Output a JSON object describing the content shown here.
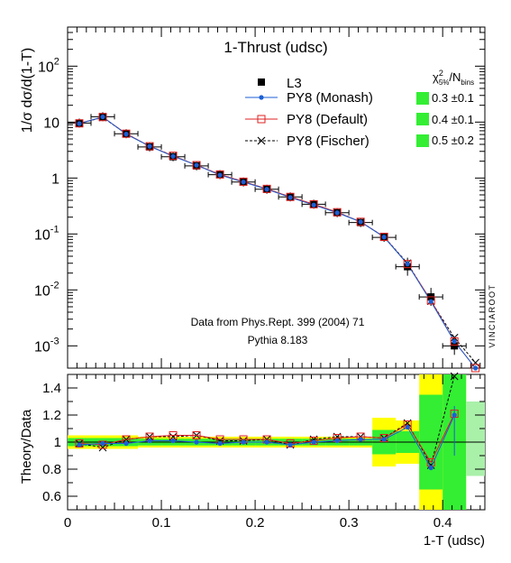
{
  "chart_data": [
    {
      "type": "scatter",
      "panel": "main",
      "title": "1-Thrust (udsc)",
      "ylabel": "1/σ dσ/d(1-T)",
      "yscale": "log",
      "xlim": [
        0,
        0.445
      ],
      "ylim": [
        0.0004,
        500
      ],
      "yticks": [
        {
          "label": "10",
          "sup": "-3"
        },
        {
          "label": "10",
          "sup": "-2"
        },
        {
          "label": "10",
          "sup": "-1"
        },
        {
          "label": "1",
          "sup": ""
        },
        {
          "label": "10",
          "sup": ""
        },
        {
          "label": "10",
          "sup": "2"
        }
      ],
      "legend_position": "top-right",
      "chi2_header": "χ²5%/Nbins",
      "bins": [
        [
          0.0,
          0.025
        ],
        [
          0.025,
          0.05
        ],
        [
          0.05,
          0.075
        ],
        [
          0.075,
          0.1
        ],
        [
          0.1,
          0.125
        ],
        [
          0.125,
          0.15
        ],
        [
          0.15,
          0.175
        ],
        [
          0.175,
          0.2
        ],
        [
          0.2,
          0.225
        ],
        [
          0.225,
          0.25
        ],
        [
          0.25,
          0.275
        ],
        [
          0.275,
          0.3
        ],
        [
          0.3,
          0.325
        ],
        [
          0.325,
          0.35
        ],
        [
          0.35,
          0.375
        ],
        [
          0.375,
          0.4
        ],
        [
          0.4,
          0.425
        ],
        [
          0.425,
          0.445
        ]
      ],
      "x": [
        0.0125,
        0.0375,
        0.0625,
        0.0875,
        0.1125,
        0.1375,
        0.1625,
        0.1875,
        0.2125,
        0.2375,
        0.2625,
        0.2875,
        0.3125,
        0.3375,
        0.3625,
        0.3875,
        0.4125,
        0.435
      ],
      "series": [
        {
          "name": "L3",
          "marker": "square",
          "color": "#000000",
          "values": [
            9.6,
            12.5,
            6.2,
            3.6,
            2.4,
            1.65,
            1.15,
            0.85,
            0.63,
            0.46,
            0.34,
            0.24,
            0.16,
            0.087,
            0.026,
            0.0075,
            0.001,
            null
          ]
        },
        {
          "name": "PY8 (Monash)",
          "marker": "dot",
          "color": "#1b5fd6",
          "values": [
            9.4,
            12.4,
            6.1,
            3.7,
            2.45,
            1.7,
            1.13,
            0.85,
            0.63,
            0.45,
            0.33,
            0.24,
            0.165,
            0.088,
            0.029,
            0.0062,
            0.0012,
            0.0004
          ]
        },
        {
          "name": "PY8 (Default)",
          "marker": "open-square",
          "color": "#e02020",
          "values": [
            9.5,
            12.3,
            6.2,
            3.7,
            2.5,
            1.7,
            1.16,
            0.86,
            0.64,
            0.46,
            0.34,
            0.245,
            0.165,
            0.089,
            0.029,
            0.0065,
            0.0012,
            0.0004
          ]
        },
        {
          "name": "PY8 (Fischer)",
          "marker": "cross",
          "color": "#000000",
          "values": [
            9.5,
            12.1,
            6.2,
            3.7,
            2.5,
            1.7,
            1.16,
            0.86,
            0.64,
            0.46,
            0.34,
            0.245,
            0.165,
            0.089,
            0.03,
            0.0063,
            0.0014,
            0.0005
          ]
        }
      ],
      "chi2": [
        {
          "series": "PY8 (Monash)",
          "value": "0.3 ±0.1"
        },
        {
          "series": "PY8 (Default)",
          "value": "0.4 ±0.1"
        },
        {
          "series": "PY8 (Fischer)",
          "value": "0.5 ±0.2"
        }
      ],
      "annotations": [
        "Data from Phys.Rept. 399 (2004) 71",
        "Pythia 8.183"
      ],
      "watermark": "VINCIAROOT"
    },
    {
      "type": "line",
      "panel": "ratio",
      "xlabel": "1-T (udsc)",
      "ylabel": "Theory/Data",
      "xlim": [
        0,
        0.445
      ],
      "ylim": [
        0.5,
        1.5
      ],
      "xticks": [
        "0",
        "0.1",
        "0.2",
        "0.3",
        "0.4"
      ],
      "yticks": [
        "0.6",
        "0.8",
        "1",
        "1.2",
        "1.4"
      ],
      "x": [
        0.0125,
        0.0375,
        0.0625,
        0.0875,
        0.1125,
        0.1375,
        0.1625,
        0.1875,
        0.2125,
        0.2375,
        0.2625,
        0.2875,
        0.3125,
        0.3375,
        0.3625,
        0.3875,
        0.4125
      ],
      "bands": {
        "yellow_halfwidth": [
          0.05,
          0.05,
          0.05,
          0.04,
          0.04,
          0.04,
          0.04,
          0.04,
          0.04,
          0.04,
          0.04,
          0.04,
          0.04,
          0.18,
          0.16,
          0.6,
          0.6
        ],
        "green_halfwidth": [
          0.03,
          0.03,
          0.03,
          0.025,
          0.025,
          0.025,
          0.025,
          0.025,
          0.025,
          0.025,
          0.025,
          0.025,
          0.025,
          0.09,
          0.08,
          0.35,
          0.6
        ],
        "green_color": "#33ee33",
        "yellow_color": "#ffff00"
      },
      "series": [
        {
          "name": "PY8 (Monash)",
          "color": "#1b5fd6",
          "values": [
            0.98,
            0.99,
            0.99,
            1.01,
            1.01,
            1.0,
            0.99,
            1.0,
            1.0,
            0.98,
            1.0,
            1.01,
            1.02,
            1.02,
            1.11,
            0.81,
            1.2
          ]
        },
        {
          "name": "PY8 (Default)",
          "color": "#e02020",
          "values": [
            0.99,
            0.98,
            1.02,
            1.04,
            1.05,
            1.05,
            1.02,
            1.02,
            1.02,
            0.99,
            1.01,
            1.03,
            1.04,
            1.03,
            1.13,
            0.85,
            1.21
          ]
        },
        {
          "name": "PY8 (Fischer)",
          "color": "#000000",
          "values": [
            0.99,
            0.96,
            1.02,
            1.04,
            1.04,
            1.05,
            1.01,
            1.01,
            1.02,
            0.98,
            1.02,
            1.04,
            1.04,
            1.03,
            1.14,
            0.83,
            1.49
          ]
        }
      ]
    }
  ]
}
